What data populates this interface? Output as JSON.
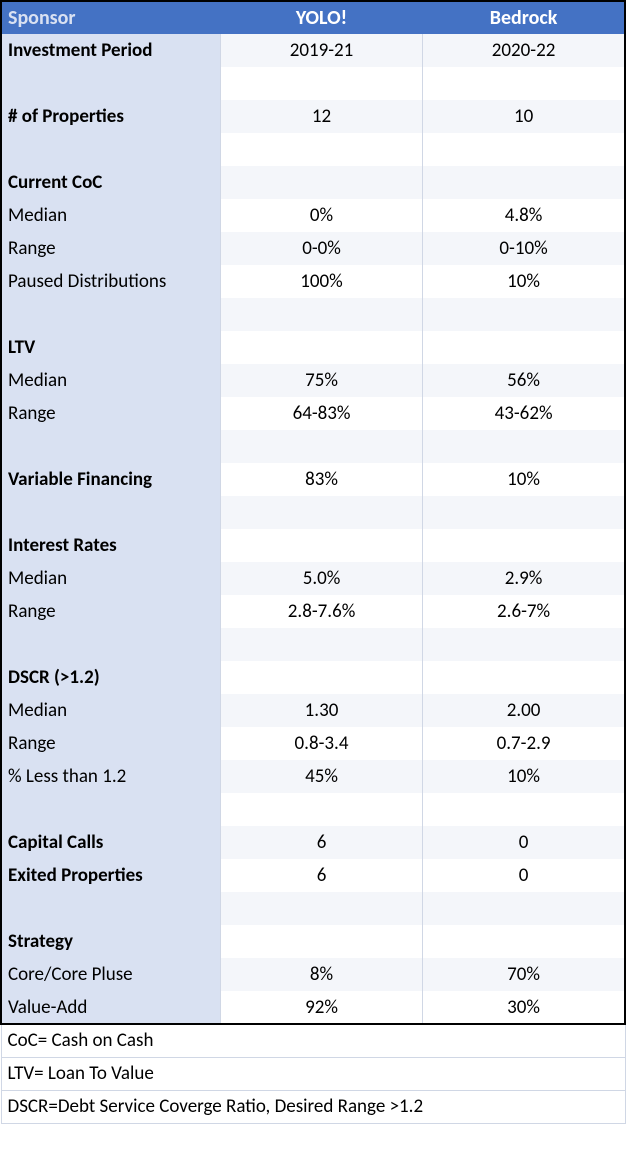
{
  "table": {
    "header_bg": "#4472c4",
    "header_fg": "#ffffff",
    "label_bg": "#d9e1f2",
    "stripe_even_bg": "#ffffff",
    "stripe_odd_bg": "#f4f6fa",
    "gridline_color": "#d0d7e5",
    "frame_color": "#000000",
    "font_family": "Calibri",
    "font_size_pt": 14,
    "columns": [
      "Sponsor",
      "YOLO!",
      "Bedrock"
    ],
    "rows": [
      {
        "label": "Investment Period",
        "bold": true,
        "a": "2019-21",
        "b": "2020-22"
      },
      {
        "label": "",
        "bold": false,
        "a": "",
        "b": ""
      },
      {
        "label": "# of Properties",
        "bold": true,
        "a": "12",
        "b": "10"
      },
      {
        "label": "",
        "bold": false,
        "a": "",
        "b": ""
      },
      {
        "label": "Current CoC",
        "bold": true,
        "a": "",
        "b": ""
      },
      {
        "label": "Median",
        "bold": false,
        "a": "0%",
        "b": "4.8%"
      },
      {
        "label": "Range",
        "bold": false,
        "a": "0-0%",
        "b": "0-10%"
      },
      {
        "label": "Paused Distributions",
        "bold": false,
        "a": "100%",
        "b": "10%"
      },
      {
        "label": "",
        "bold": false,
        "a": "",
        "b": ""
      },
      {
        "label": "LTV",
        "bold": true,
        "a": "",
        "b": ""
      },
      {
        "label": "Median",
        "bold": false,
        "a": "75%",
        "b": "56%"
      },
      {
        "label": "Range",
        "bold": false,
        "a": "64-83%",
        "b": "43-62%"
      },
      {
        "label": "",
        "bold": false,
        "a": "",
        "b": ""
      },
      {
        "label": "Variable Financing",
        "bold": true,
        "a": "83%",
        "b": "10%"
      },
      {
        "label": "",
        "bold": false,
        "a": "",
        "b": ""
      },
      {
        "label": "Interest Rates",
        "bold": true,
        "a": "",
        "b": ""
      },
      {
        "label": "Median",
        "bold": false,
        "a": "5.0%",
        "b": "2.9%"
      },
      {
        "label": "Range",
        "bold": false,
        "a": "2.8-7.6%",
        "b": "2.6-7%"
      },
      {
        "label": "",
        "bold": false,
        "a": "",
        "b": ""
      },
      {
        "label": "DSCR (>1.2)",
        "bold": true,
        "a": "",
        "b": ""
      },
      {
        "label": "Median",
        "bold": false,
        "a": "1.30",
        "b": "2.00"
      },
      {
        "label": "Range",
        "bold": false,
        "a": "0.8-3.4",
        "b": "0.7-2.9"
      },
      {
        "label": "% Less than 1.2",
        "bold": false,
        "a": "45%",
        "b": "10%"
      },
      {
        "label": "",
        "bold": false,
        "a": "",
        "b": ""
      },
      {
        "label": "Capital Calls",
        "bold": true,
        "a": "6",
        "b": "0"
      },
      {
        "label": "Exited Properties",
        "bold": true,
        "a": "6",
        "b": "0"
      },
      {
        "label": "",
        "bold": false,
        "a": "",
        "b": ""
      },
      {
        "label": "Strategy",
        "bold": true,
        "a": "",
        "b": ""
      },
      {
        "label": "Core/Core Pluse",
        "bold": false,
        "a": "8%",
        "b": "70%"
      },
      {
        "label": "Value-Add",
        "bold": false,
        "a": "92%",
        "b": "30%"
      }
    ],
    "footnotes": [
      "CoC= Cash on Cash",
      "LTV= Loan To Value",
      "DSCR=Debt Service Coverge Ratio, Desired Range >1.2"
    ]
  }
}
